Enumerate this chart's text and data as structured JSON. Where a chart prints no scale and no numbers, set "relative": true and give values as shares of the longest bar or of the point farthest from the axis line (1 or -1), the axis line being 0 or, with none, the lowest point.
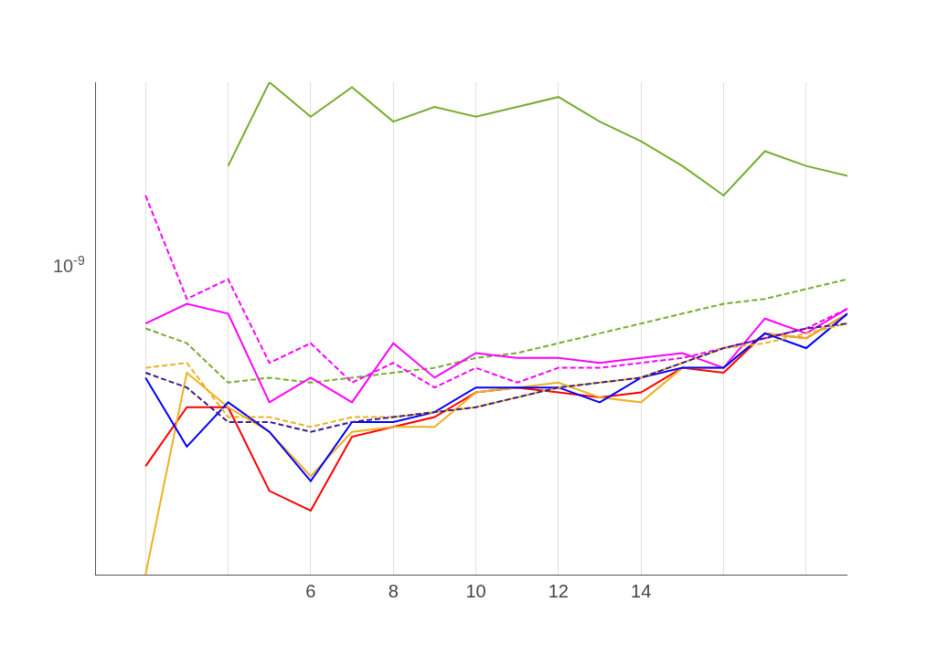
{
  "chart_data": {
    "type": "line",
    "relative": true,
    "grid": "x",
    "marker": "none",
    "annotations": [
      "10$^{-9}$"
    ],
    "x": [
      2,
      3,
      4,
      5,
      6,
      7,
      8,
      9,
      10,
      11,
      12,
      13,
      14,
      15,
      16,
      17,
      18,
      19
    ],
    "xlim": [
      0.8,
      19
    ],
    "xticks": [
      {
        "value": 2,
        "label": null
      },
      {
        "value": 4,
        "label": null
      },
      6,
      8,
      10,
      12,
      14,
      {
        "value": 16,
        "label": null
      },
      {
        "value": 18,
        "label": null
      }
    ],
    "series": [
      {
        "color": "#77ac30",
        "line_style": "solid",
        "values": [
          null,
          null,
          0.83,
          1.0,
          0.93,
          0.99,
          0.92,
          0.95,
          0.93,
          0.95,
          0.97,
          0.92,
          0.88,
          0.83,
          0.77,
          0.86,
          0.83,
          0.81
        ]
      },
      {
        "color": "#77ac30",
        "line_style": "dashed",
        "values": [
          0.5,
          0.47,
          0.39,
          0.4,
          0.39,
          0.4,
          0.41,
          0.42,
          0.44,
          0.45,
          0.47,
          0.49,
          0.51,
          0.53,
          0.55,
          0.56,
          0.58,
          0.6
        ]
      },
      {
        "color": "#ff00ff",
        "line_style": "dashed",
        "values": [
          0.77,
          0.56,
          0.6,
          0.43,
          0.47,
          0.39,
          0.43,
          0.38,
          0.42,
          0.39,
          0.42,
          0.42,
          0.43,
          0.44,
          0.46,
          0.48,
          0.5,
          0.54
        ]
      },
      {
        "color": "#ff00ff",
        "line_style": "solid",
        "values": [
          0.51,
          0.55,
          0.53,
          0.35,
          0.4,
          0.35,
          0.47,
          0.4,
          0.45,
          0.44,
          0.44,
          0.43,
          0.44,
          0.45,
          0.42,
          0.52,
          0.49,
          0.54
        ]
      },
      {
        "color": "#ff0000",
        "line_style": "solid",
        "values": [
          0.22,
          0.34,
          0.34,
          0.17,
          0.13,
          0.28,
          0.3,
          0.32,
          0.37,
          0.38,
          0.37,
          0.36,
          0.37,
          0.42,
          0.41,
          0.49,
          0.48,
          0.53
        ]
      },
      {
        "color": "#edb120",
        "line_style": "solid",
        "values": [
          0,
          0.41,
          0.34,
          0.29,
          0.2,
          0.29,
          0.3,
          0.3,
          0.37,
          0.38,
          0.39,
          0.36,
          0.35,
          0.42,
          0.42,
          0.49,
          0.48,
          0.53
        ]
      },
      {
        "color": "#0000ff",
        "line_style": "solid",
        "values": [
          0.4,
          0.26,
          0.35,
          0.29,
          0.19,
          0.31,
          0.31,
          0.33,
          0.38,
          0.38,
          0.38,
          0.35,
          0.4,
          0.42,
          0.42,
          0.49,
          0.46,
          0.53
        ]
      },
      {
        "color": "#edb120",
        "line_style": "dashed",
        "values": [
          0.42,
          0.43,
          0.32,
          0.32,
          0.3,
          0.32,
          0.32,
          0.33,
          0.34,
          0.36,
          0.38,
          0.39,
          0.4,
          0.43,
          0.46,
          0.47,
          0.49,
          0.51
        ]
      },
      {
        "color": "#3a1a8c",
        "line_style": "dashed",
        "values": [
          0.41,
          0.38,
          0.31,
          0.31,
          0.29,
          0.31,
          0.32,
          0.33,
          0.34,
          0.36,
          0.38,
          0.39,
          0.4,
          0.43,
          0.46,
          0.48,
          0.5,
          0.51
        ]
      }
    ]
  }
}
